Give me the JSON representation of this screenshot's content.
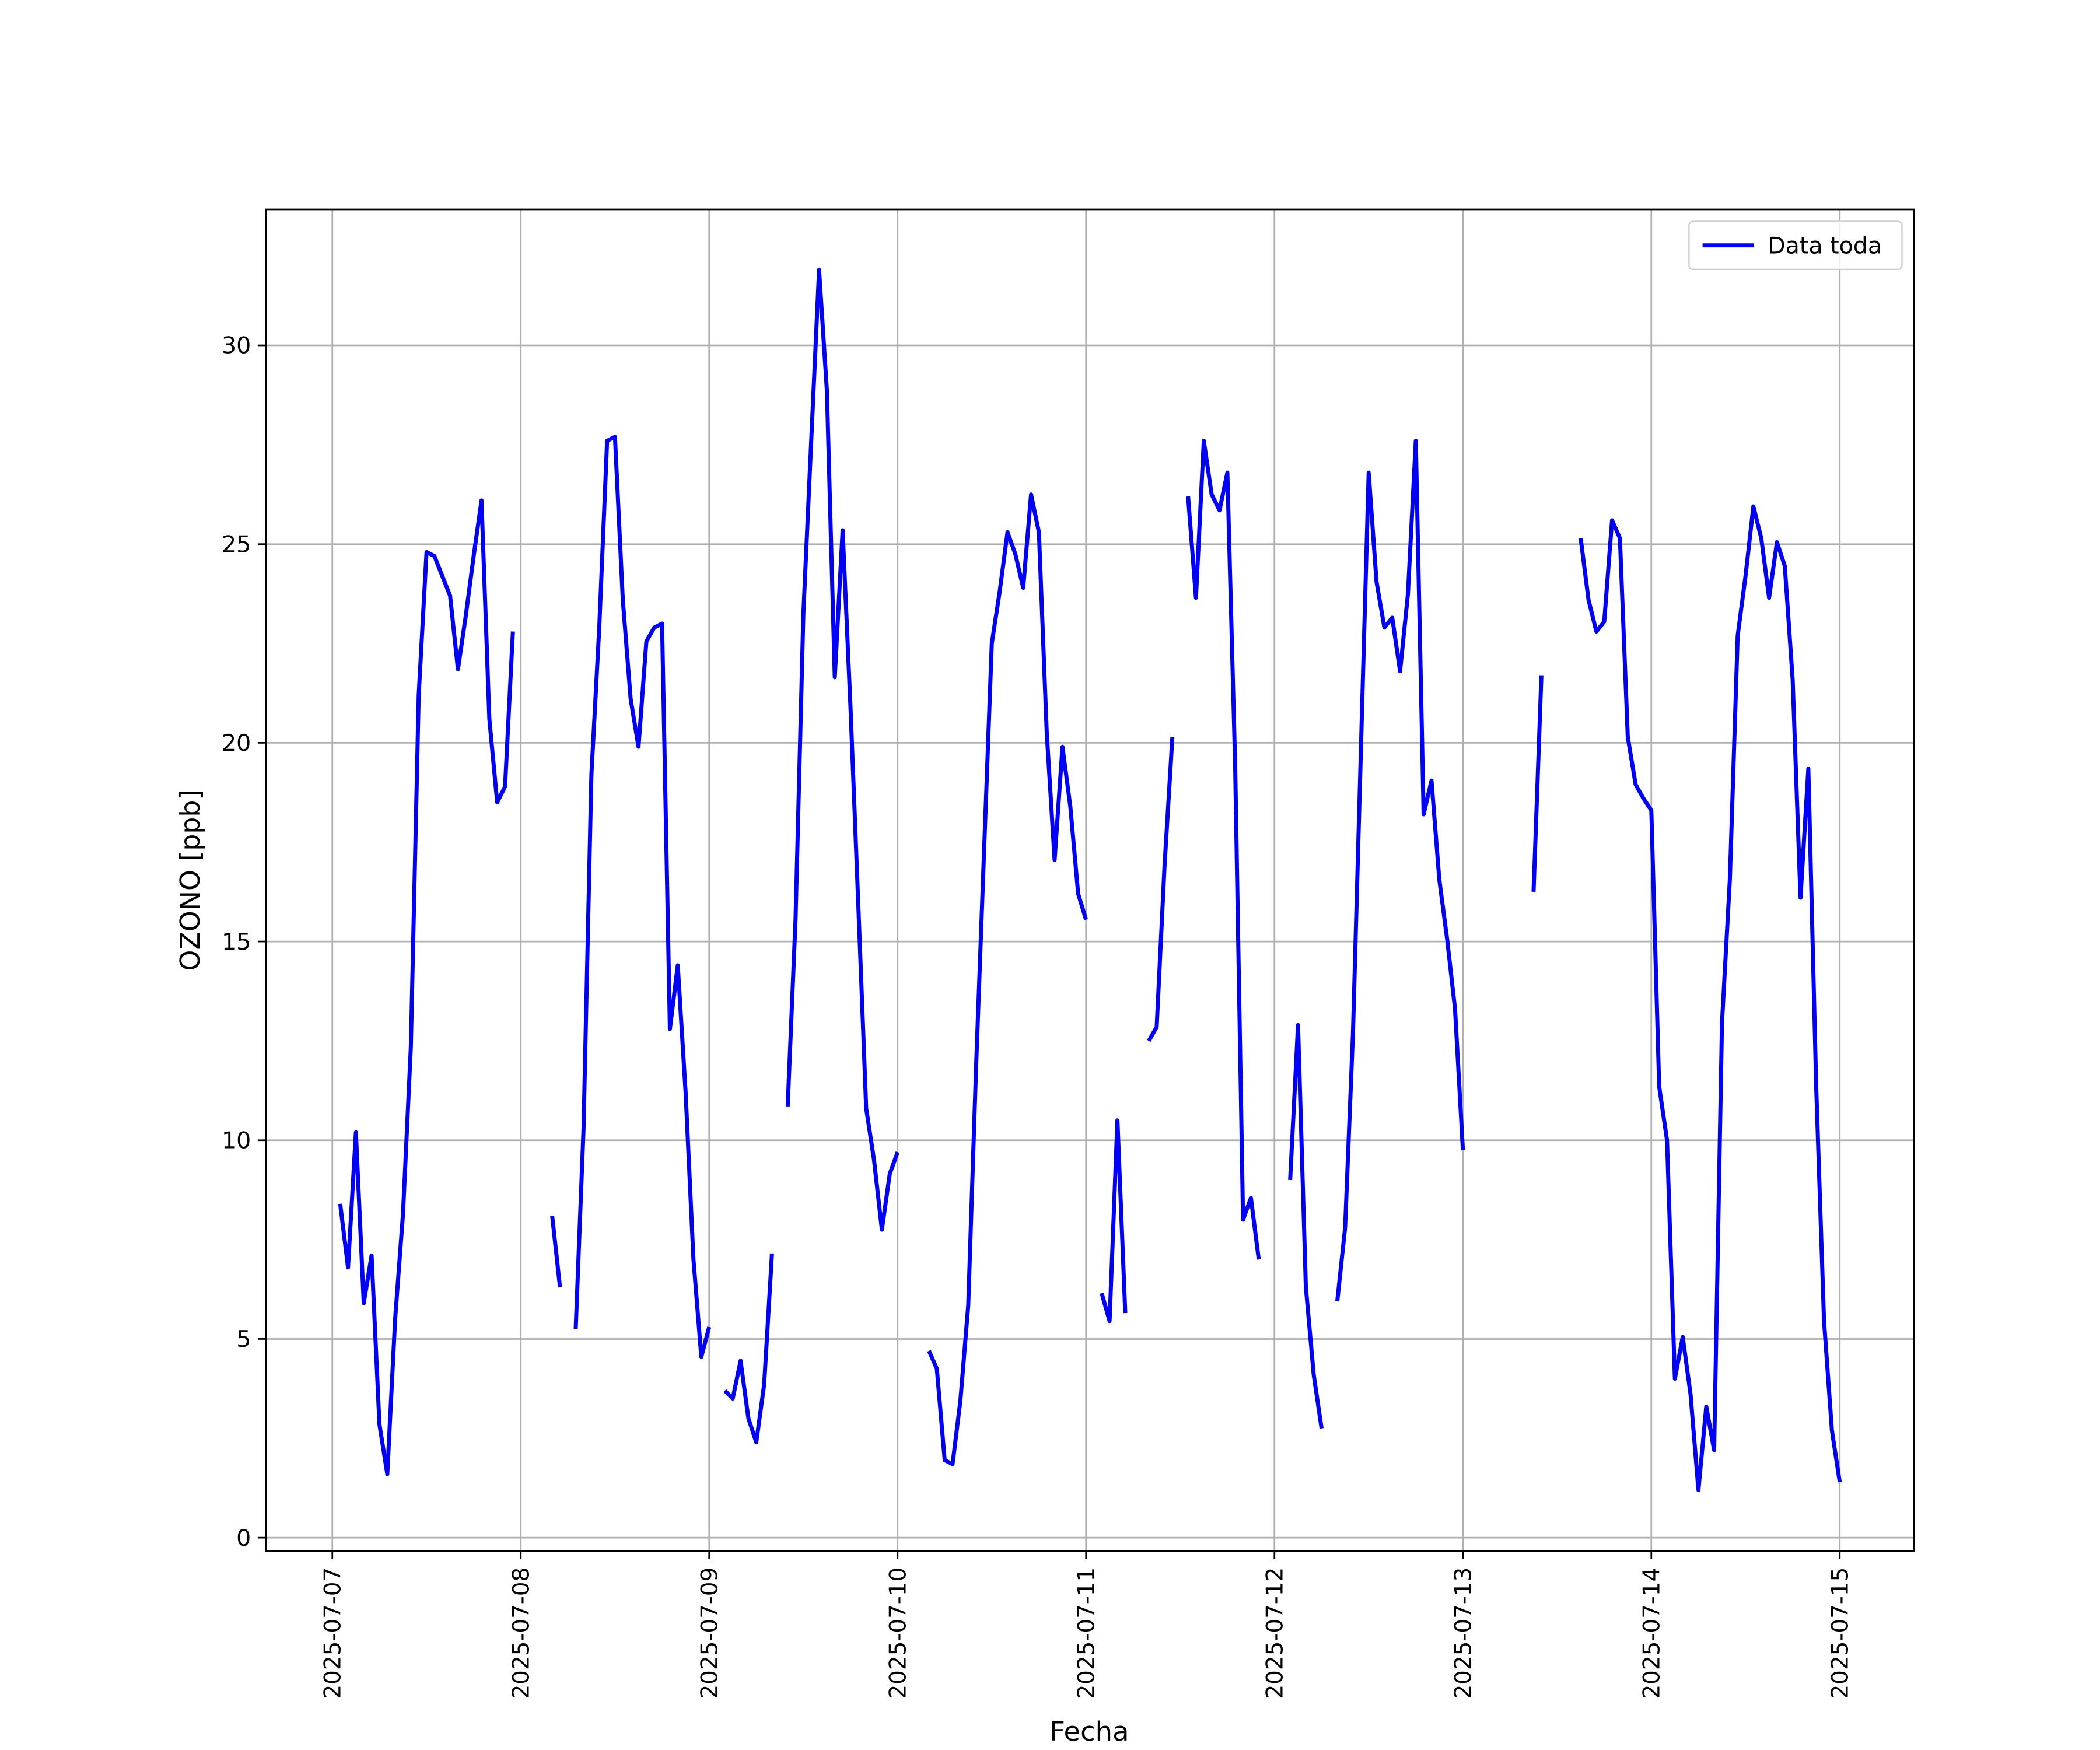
{
  "chart_data": {
    "type": "line",
    "xlabel": "Fecha",
    "ylabel": "OZONO [ppb]",
    "x": [
      "2025-07-07 01:00",
      "2025-07-07 02:00",
      "2025-07-07 03:00",
      "2025-07-07 04:00",
      "2025-07-07 05:00",
      "2025-07-07 06:00",
      "2025-07-07 07:00",
      "2025-07-07 08:00",
      "2025-07-07 09:00",
      "2025-07-07 10:00",
      "2025-07-07 11:00",
      "2025-07-07 12:00",
      "2025-07-07 13:00",
      "2025-07-07 14:00",
      "2025-07-07 15:00",
      "2025-07-07 16:00",
      "2025-07-07 17:00",
      "2025-07-07 18:00",
      "2025-07-07 19:00",
      "2025-07-07 20:00",
      "2025-07-07 21:00",
      "2025-07-07 22:00",
      "2025-07-07 23:00",
      "2025-07-08 00:00",
      "2025-07-08 01:00",
      "2025-07-08 02:00",
      "2025-07-08 03:00",
      "2025-07-08 04:00",
      "2025-07-08 05:00",
      "2025-07-08 06:00",
      "2025-07-08 07:00",
      "2025-07-08 08:00",
      "2025-07-08 09:00",
      "2025-07-08 10:00",
      "2025-07-08 11:00",
      "2025-07-08 12:00",
      "2025-07-08 13:00",
      "2025-07-08 14:00",
      "2025-07-08 15:00",
      "2025-07-08 16:00",
      "2025-07-08 17:00",
      "2025-07-08 18:00",
      "2025-07-08 19:00",
      "2025-07-08 20:00",
      "2025-07-08 21:00",
      "2025-07-08 22:00",
      "2025-07-08 23:00",
      "2025-07-09 00:00",
      "2025-07-09 01:00",
      "2025-07-09 02:00",
      "2025-07-09 03:00",
      "2025-07-09 04:00",
      "2025-07-09 05:00",
      "2025-07-09 06:00",
      "2025-07-09 07:00",
      "2025-07-09 08:00",
      "2025-07-09 09:00",
      "2025-07-09 10:00",
      "2025-07-09 11:00",
      "2025-07-09 12:00",
      "2025-07-09 13:00",
      "2025-07-09 14:00",
      "2025-07-09 15:00",
      "2025-07-09 16:00",
      "2025-07-09 17:00",
      "2025-07-09 18:00",
      "2025-07-09 19:00",
      "2025-07-09 20:00",
      "2025-07-09 21:00",
      "2025-07-09 22:00",
      "2025-07-09 23:00",
      "2025-07-10 00:00",
      "2025-07-10 01:00",
      "2025-07-10 02:00",
      "2025-07-10 03:00",
      "2025-07-10 04:00",
      "2025-07-10 05:00",
      "2025-07-10 06:00",
      "2025-07-10 07:00",
      "2025-07-10 08:00",
      "2025-07-10 09:00",
      "2025-07-10 10:00",
      "2025-07-10 11:00",
      "2025-07-10 12:00",
      "2025-07-10 13:00",
      "2025-07-10 14:00",
      "2025-07-10 15:00",
      "2025-07-10 16:00",
      "2025-07-10 17:00",
      "2025-07-10 18:00",
      "2025-07-10 19:00",
      "2025-07-10 20:00",
      "2025-07-10 21:00",
      "2025-07-10 22:00",
      "2025-07-10 23:00",
      "2025-07-11 00:00",
      "2025-07-11 01:00",
      "2025-07-11 02:00",
      "2025-07-11 03:00",
      "2025-07-11 04:00",
      "2025-07-11 05:00",
      "2025-07-11 06:00",
      "2025-07-11 07:00",
      "2025-07-11 08:00",
      "2025-07-11 09:00",
      "2025-07-11 10:00",
      "2025-07-11 11:00",
      "2025-07-11 12:00",
      "2025-07-11 13:00",
      "2025-07-11 14:00",
      "2025-07-11 15:00",
      "2025-07-11 16:00",
      "2025-07-11 17:00",
      "2025-07-11 18:00",
      "2025-07-11 19:00",
      "2025-07-11 20:00",
      "2025-07-11 21:00",
      "2025-07-11 22:00",
      "2025-07-11 23:00",
      "2025-07-12 00:00",
      "2025-07-12 01:00",
      "2025-07-12 02:00",
      "2025-07-12 03:00",
      "2025-07-12 04:00",
      "2025-07-12 05:00",
      "2025-07-12 06:00",
      "2025-07-12 07:00",
      "2025-07-12 08:00",
      "2025-07-12 09:00",
      "2025-07-12 10:00",
      "2025-07-12 11:00",
      "2025-07-12 12:00",
      "2025-07-12 13:00",
      "2025-07-12 14:00",
      "2025-07-12 15:00",
      "2025-07-12 16:00",
      "2025-07-12 17:00",
      "2025-07-12 18:00",
      "2025-07-12 19:00",
      "2025-07-12 20:00",
      "2025-07-12 21:00",
      "2025-07-12 22:00",
      "2025-07-12 23:00",
      "2025-07-13 00:00",
      "2025-07-13 01:00",
      "2025-07-13 02:00",
      "2025-07-13 03:00",
      "2025-07-13 04:00",
      "2025-07-13 05:00",
      "2025-07-13 06:00",
      "2025-07-13 07:00",
      "2025-07-13 08:00",
      "2025-07-13 09:00",
      "2025-07-13 10:00",
      "2025-07-13 11:00",
      "2025-07-13 12:00",
      "2025-07-13 13:00",
      "2025-07-13 14:00",
      "2025-07-13 15:00",
      "2025-07-13 16:00",
      "2025-07-13 17:00",
      "2025-07-13 18:00",
      "2025-07-13 19:00",
      "2025-07-13 20:00",
      "2025-07-13 21:00",
      "2025-07-13 22:00",
      "2025-07-13 23:00",
      "2025-07-14 00:00",
      "2025-07-14 01:00",
      "2025-07-14 02:00",
      "2025-07-14 03:00",
      "2025-07-14 04:00",
      "2025-07-14 05:00",
      "2025-07-14 06:00",
      "2025-07-14 07:00",
      "2025-07-14 08:00",
      "2025-07-14 09:00",
      "2025-07-14 10:00",
      "2025-07-14 11:00",
      "2025-07-14 12:00",
      "2025-07-14 13:00",
      "2025-07-14 14:00",
      "2025-07-14 15:00",
      "2025-07-14 16:00",
      "2025-07-14 17:00",
      "2025-07-14 18:00",
      "2025-07-14 19:00",
      "2025-07-14 20:00",
      "2025-07-14 21:00",
      "2025-07-14 22:00",
      "2025-07-14 23:00",
      "2025-07-15 00:00"
    ],
    "series": [
      {
        "name": "Data toda",
        "color": "#0000ff",
        "values": [
          8.4,
          6.8,
          10.2,
          5.9,
          7.1,
          2.85,
          1.6,
          5.5,
          8.15,
          12.35,
          21.2,
          24.8,
          24.7,
          24.2,
          23.7,
          21.85,
          23.2,
          24.7,
          26.1,
          20.6,
          18.5,
          18.9,
          22.8,
          null,
          null,
          null,
          null,
          8.1,
          6.3,
          null,
          5.25,
          10.3,
          19.2,
          22.9,
          27.6,
          27.7,
          23.6,
          21.1,
          19.9,
          22.55,
          22.9,
          23.0,
          12.8,
          14.4,
          11.2,
          7.0,
          4.55,
          5.3,
          null,
          3.7,
          3.5,
          4.45,
          3.0,
          2.4,
          3.85,
          7.15,
          null,
          10.85,
          15.55,
          23.25,
          27.6,
          31.9,
          28.85,
          21.65,
          25.35,
          20.9,
          15.9,
          10.8,
          9.5,
          7.75,
          9.15,
          9.7,
          null,
          null,
          null,
          4.7,
          4.25,
          1.95,
          1.85,
          3.45,
          5.85,
          11.85,
          17.2,
          22.5,
          23.8,
          25.3,
          24.75,
          23.9,
          26.25,
          25.3,
          20.25,
          17.05,
          19.9,
          18.4,
          16.2,
          15.55,
          null,
          6.15,
          5.45,
          10.5,
          5.65,
          null,
          null,
          12.5,
          12.85,
          16.9,
          20.15,
          null,
          26.2,
          23.65,
          27.6,
          26.25,
          25.85,
          26.8,
          19.4,
          8.0,
          8.55,
          7.0,
          null,
          null,
          null,
          9.0,
          12.9,
          6.3,
          4.1,
          2.75,
          null,
          5.95,
          7.8,
          12.7,
          19.75,
          26.8,
          24.05,
          22.9,
          23.15,
          21.8,
          23.75,
          27.6,
          18.2,
          19.05,
          16.55,
          15.05,
          13.3,
          9.75,
          null,
          null,
          null,
          null,
          null,
          null,
          null,
          null,
          16.25,
          21.7,
          null,
          null,
          null,
          null,
          25.15,
          23.6,
          22.8,
          23.05,
          25.6,
          25.15,
          20.15,
          18.95,
          18.6,
          18.3,
          11.35,
          10.0,
          4.0,
          5.05,
          3.6,
          1.2,
          3.3,
          2.2,
          12.95,
          16.55,
          22.7,
          24.2,
          25.95,
          25.15,
          23.65,
          25.05,
          24.45,
          21.6,
          16.1,
          19.35,
          11.35,
          5.45,
          2.7,
          1.4
        ]
      }
    ],
    "xlim": [
      "2025-07-06 15:32",
      "2025-07-15 09:29"
    ],
    "xticks": [
      "2025-07-07",
      "2025-07-08",
      "2025-07-09",
      "2025-07-10",
      "2025-07-11",
      "2025-07-12",
      "2025-07-13",
      "2025-07-14",
      "2025-07-15"
    ],
    "ylim": [
      -0.34,
      33.42
    ],
    "yticks": [
      0,
      5,
      10,
      15,
      20,
      25,
      30
    ],
    "grid": true,
    "legend": "upper right"
  }
}
